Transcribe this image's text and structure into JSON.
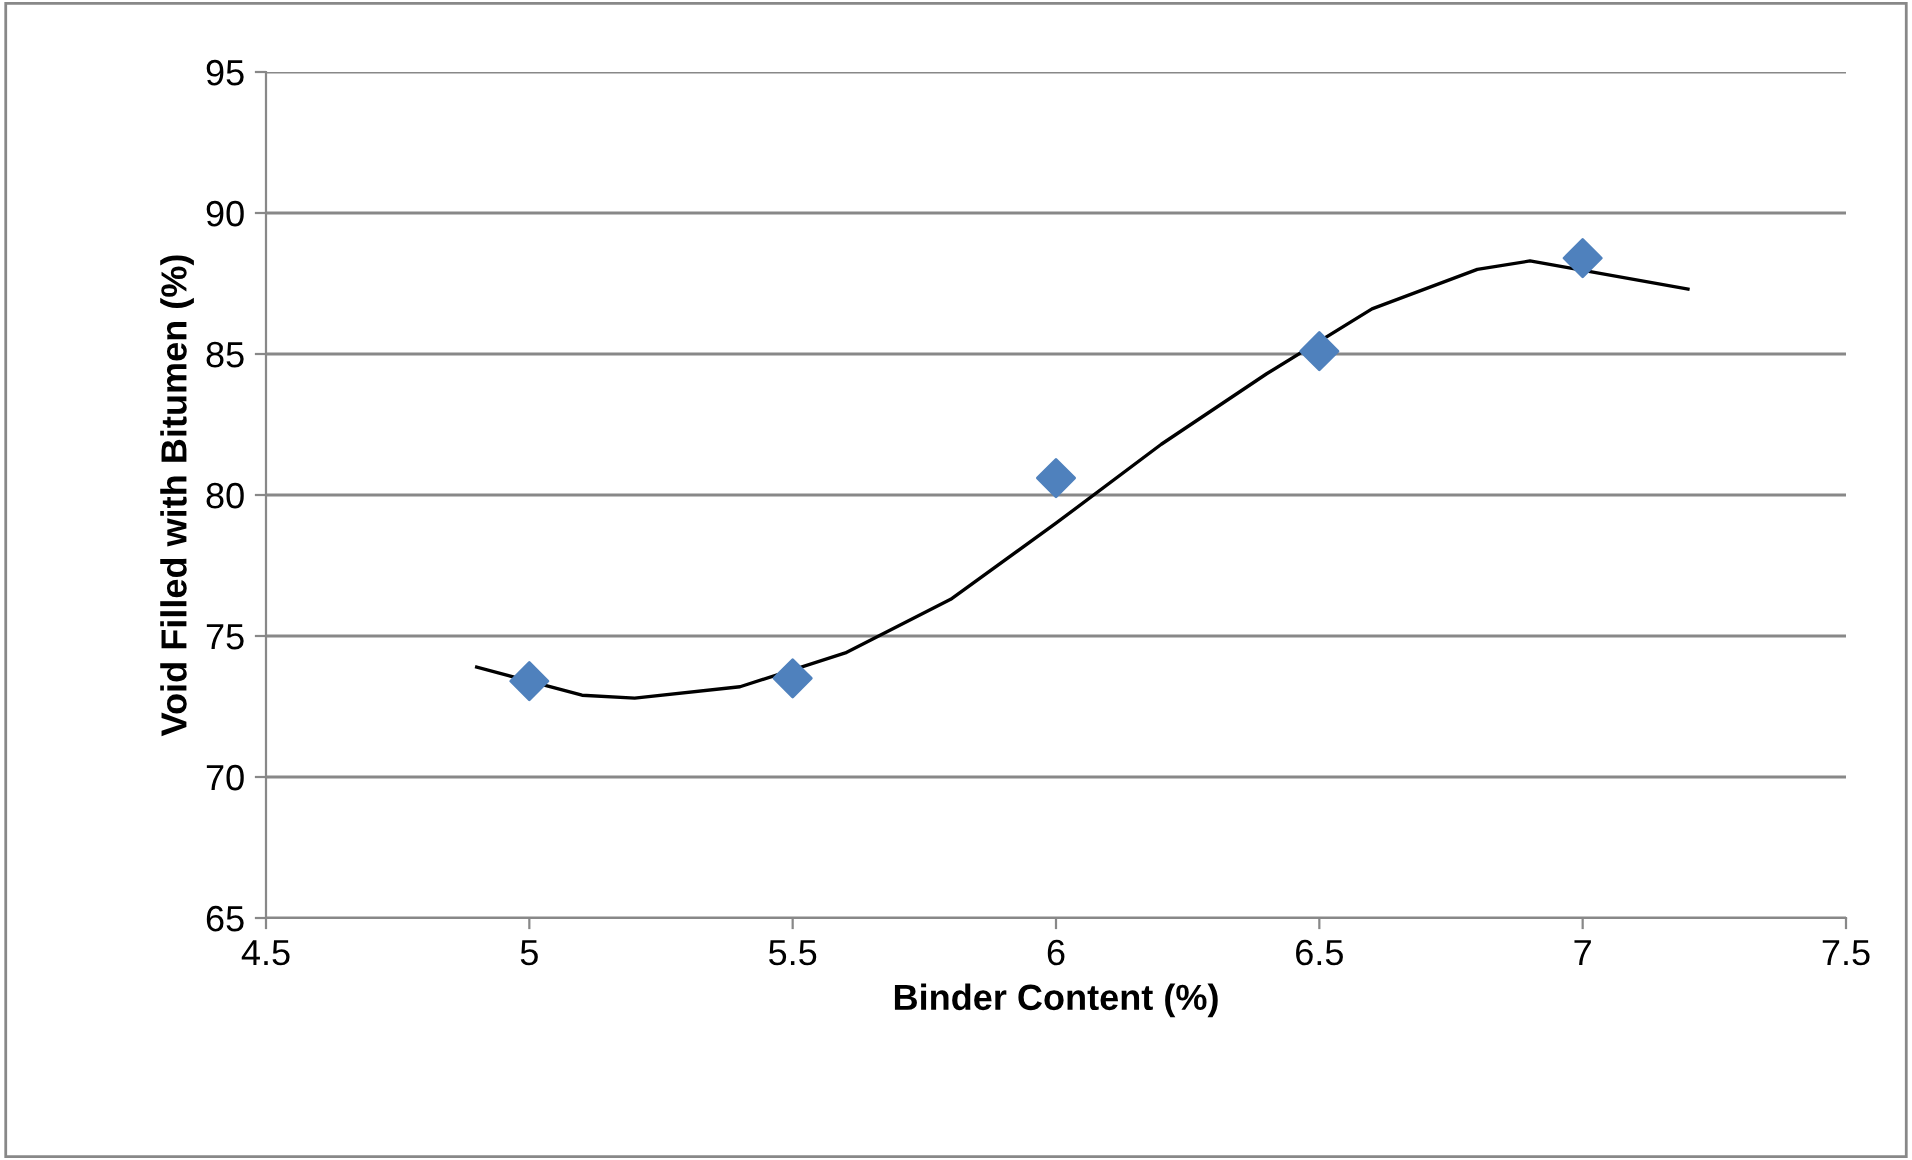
{
  "chart_data": {
    "type": "scatter",
    "xlabel": "Binder Content (%)",
    "ylabel": "Void Filled with Bitumen (%)",
    "xlim": [
      4.5,
      7.5
    ],
    "xticks": [
      4.5,
      5,
      5.5,
      6,
      6.5,
      7,
      7.5
    ],
    "ylim": [
      65,
      95
    ],
    "yticks": [
      65,
      70,
      75,
      80,
      85,
      90,
      95
    ],
    "grid": "y",
    "legend": false,
    "series": [
      {
        "color": "#4f81bd",
        "marker": "diamond",
        "x": [
          5,
          5.5,
          6,
          6.5,
          7
        ],
        "values": [
          73.4,
          73.5,
          80.6,
          85.1,
          88.4
        ]
      },
      {
        "type": "line",
        "color": "#000000",
        "marker": "none",
        "line_style": "solid",
        "x": [
          4.9,
          5.1,
          5.2,
          5.4,
          5.6,
          5.8,
          6.0,
          6.2,
          6.4,
          6.6,
          6.8,
          6.9,
          7.2
        ],
        "values": [
          73.9,
          72.9,
          72.8,
          73.2,
          74.4,
          76.3,
          79.0,
          81.8,
          84.3,
          86.6,
          88.0,
          88.3,
          87.3
        ]
      }
    ]
  }
}
